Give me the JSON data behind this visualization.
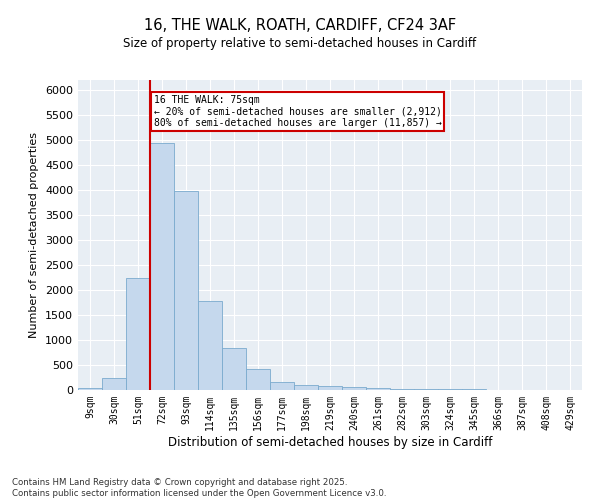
{
  "title_line1": "16, THE WALK, ROATH, CARDIFF, CF24 3AF",
  "title_line2": "Size of property relative to semi-detached houses in Cardiff",
  "xlabel": "Distribution of semi-detached houses by size in Cardiff",
  "ylabel": "Number of semi-detached properties",
  "categories": [
    "9sqm",
    "30sqm",
    "51sqm",
    "72sqm",
    "93sqm",
    "114sqm",
    "135sqm",
    "156sqm",
    "177sqm",
    "198sqm",
    "219sqm",
    "240sqm",
    "261sqm",
    "282sqm",
    "303sqm",
    "324sqm",
    "345sqm",
    "366sqm",
    "387sqm",
    "408sqm",
    "429sqm"
  ],
  "values": [
    40,
    250,
    2250,
    4950,
    3980,
    1780,
    850,
    425,
    165,
    110,
    75,
    55,
    40,
    30,
    20,
    15,
    12,
    8,
    5,
    4,
    3
  ],
  "bar_color": "#c5d8ed",
  "bar_edge_color": "#7aaace",
  "property_label": "16 THE WALK: 75sqm",
  "pct_smaller": 20,
  "count_smaller": "2,912",
  "pct_larger": 80,
  "count_larger": "11,857",
  "vline_color": "#cc0000",
  "vline_x_index": 2.5,
  "annotation_box_color": "#cc0000",
  "ylim": [
    0,
    6200
  ],
  "yticks": [
    0,
    500,
    1000,
    1500,
    2000,
    2500,
    3000,
    3500,
    4000,
    4500,
    5000,
    5500,
    6000
  ],
  "background_color": "#e8eef4",
  "footer_line1": "Contains HM Land Registry data © Crown copyright and database right 2025.",
  "footer_line2": "Contains public sector information licensed under the Open Government Licence v3.0."
}
